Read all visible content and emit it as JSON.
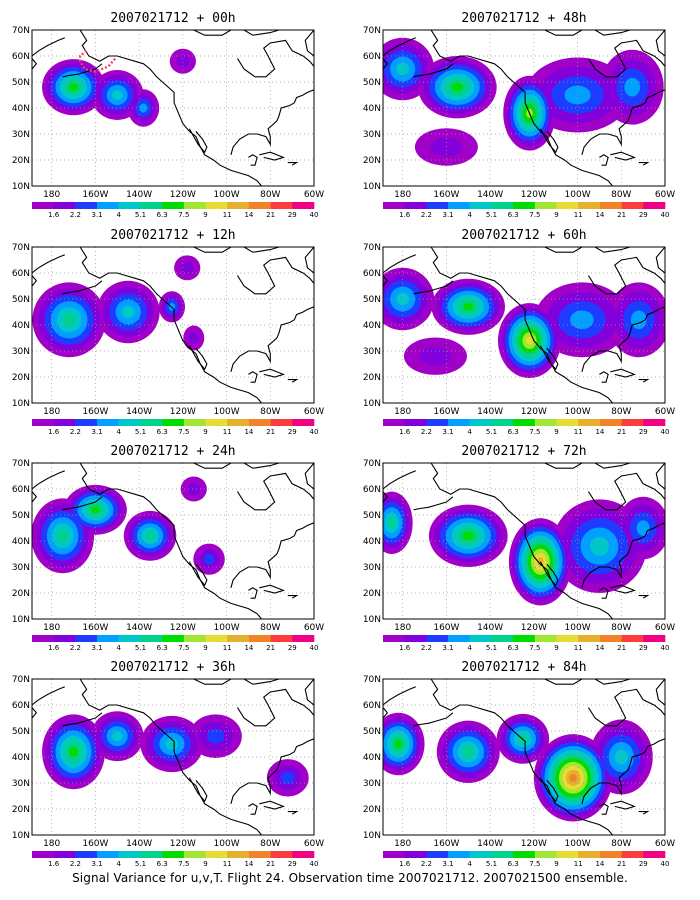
{
  "caption": "Signal Variance for u,v,T. Flight 24. Observation time 2007021712. 2007021500 ensemble.",
  "colorbar": {
    "labels": [
      "1.6",
      "2.2",
      "3.1",
      "4",
      "5.1",
      "6.3",
      "7.5",
      "9",
      "11",
      "14",
      "21",
      "29",
      "40"
    ],
    "colors": [
      "#a000c8",
      "#8200dc",
      "#1e3cff",
      "#00a0ff",
      "#00c8c8",
      "#00d28c",
      "#00dc00",
      "#a0e632",
      "#e6dc32",
      "#e6af2d",
      "#f08228",
      "#fa3c3c",
      "#f00082"
    ]
  },
  "axes": {
    "lon_labels": [
      "180",
      "160W",
      "140W",
      "120W",
      "100W",
      "80W",
      "60W"
    ],
    "lat_labels": [
      "70N",
      "60N",
      "50N",
      "40N",
      "30N",
      "20N",
      "10N"
    ]
  },
  "panels": [
    {
      "title": "2007021712 + 00h",
      "lead_hours": 0,
      "max_level": 7
    },
    {
      "title": "2007021712 + 48h",
      "lead_hours": 48,
      "max_level": 9
    },
    {
      "title": "2007021712 + 12h",
      "lead_hours": 12,
      "max_level": 6
    },
    {
      "title": "2007021712 + 60h",
      "lead_hours": 60,
      "max_level": 9
    },
    {
      "title": "2007021712 + 24h",
      "lead_hours": 24,
      "max_level": 7
    },
    {
      "title": "2007021712 + 72h",
      "lead_hours": 72,
      "max_level": 10
    },
    {
      "title": "2007021712 + 36h",
      "lead_hours": 36,
      "max_level": 8
    },
    {
      "title": "2007021712 + 84h",
      "lead_hours": 84,
      "max_level": 11
    }
  ],
  "flight_track_color": "#ff3c78"
}
